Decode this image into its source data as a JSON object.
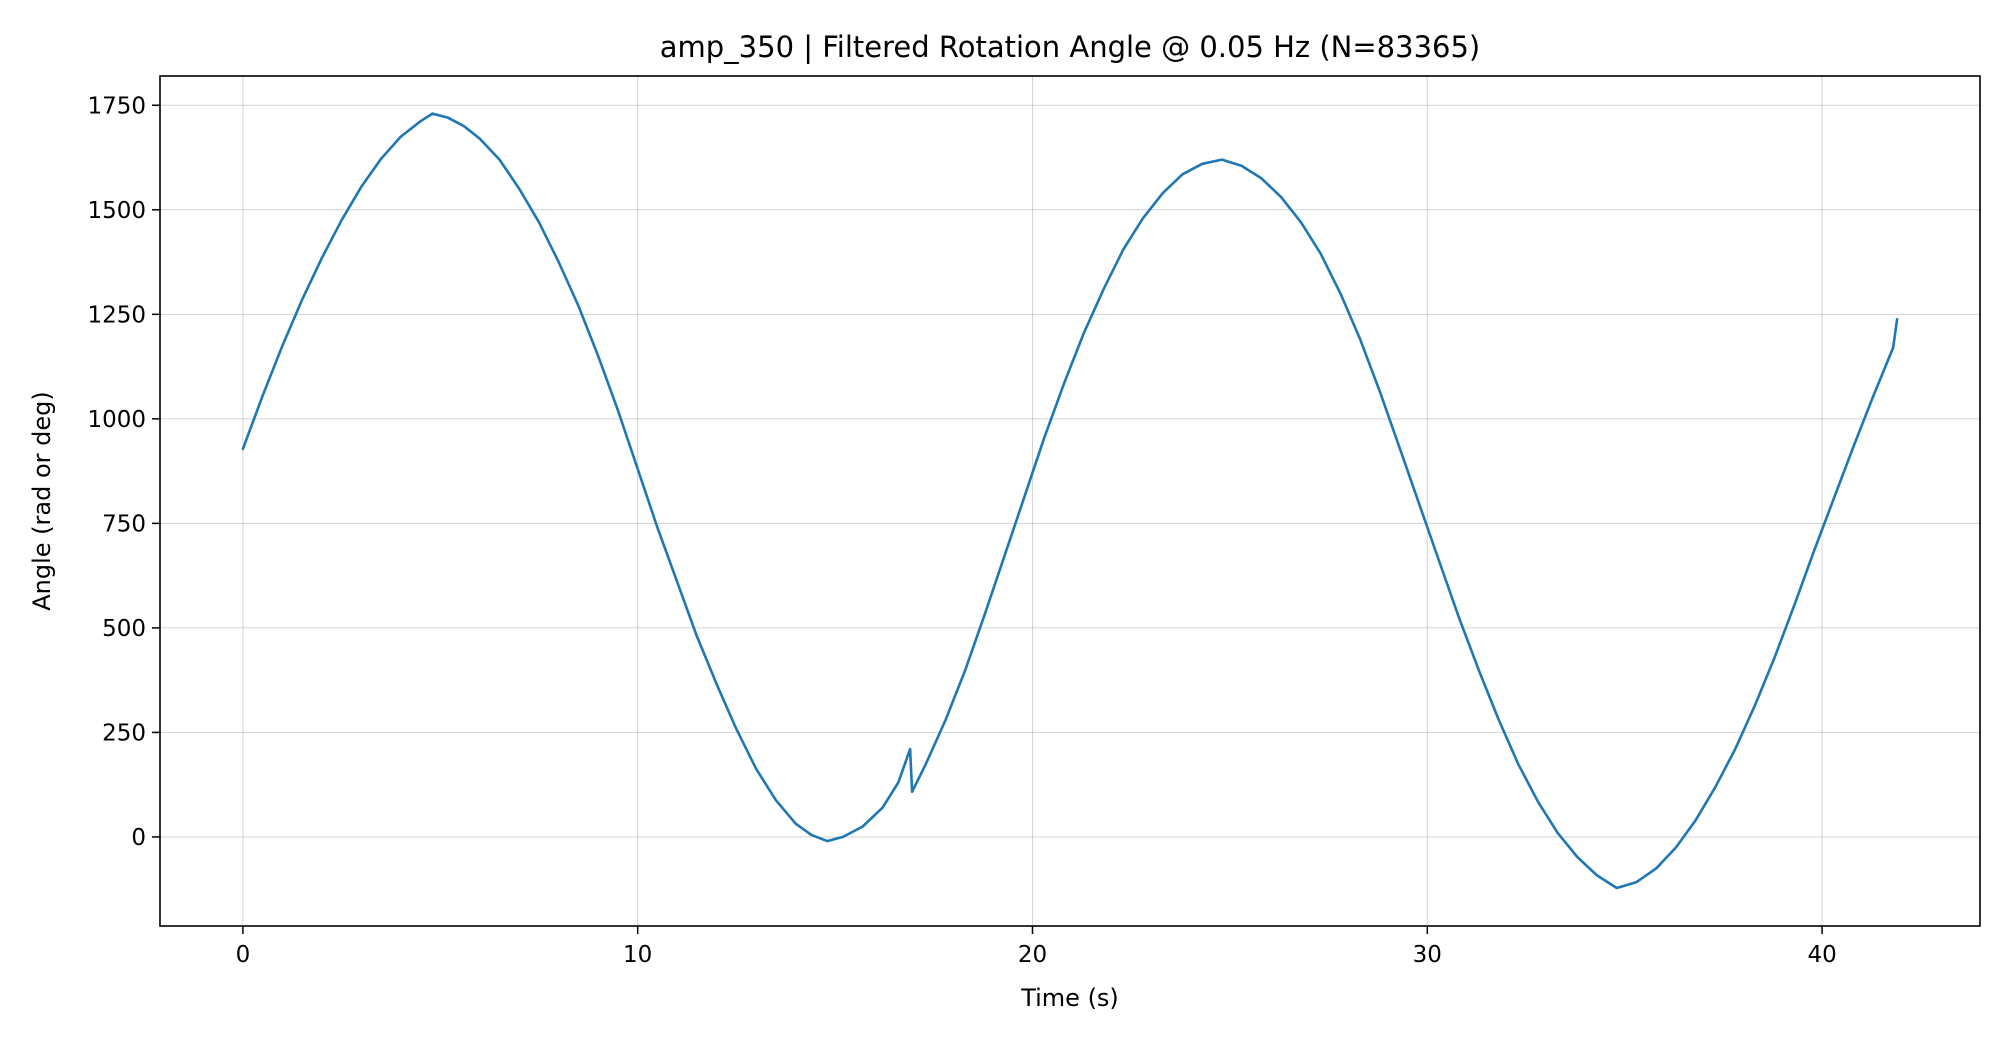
{
  "chart_data": {
    "type": "line",
    "title": "amp_350 | Filtered Rotation Angle @ 0.05 Hz  (N=83365)",
    "xlabel": "Time (s)",
    "ylabel": "Angle (rad or deg)",
    "xlim": [
      -2.1,
      44.0
    ],
    "ylim": [
      -213,
      1820
    ],
    "xticks": [
      0,
      10,
      20,
      30,
      40
    ],
    "yticks": [
      0,
      250,
      500,
      750,
      1000,
      1250,
      1500,
      1750
    ],
    "grid": true,
    "colors": {
      "series": "#1f77b4"
    },
    "series": [
      {
        "values": [
          [
            0,
            928
          ],
          [
            0.5,
            1055
          ],
          [
            1,
            1175
          ],
          [
            1.5,
            1285
          ],
          [
            2,
            1385
          ],
          [
            2.5,
            1475
          ],
          [
            3,
            1555
          ],
          [
            3.5,
            1622
          ],
          [
            4,
            1675
          ],
          [
            4.5,
            1712
          ],
          [
            4.8,
            1730
          ],
          [
            5.2,
            1720
          ],
          [
            5.6,
            1700
          ],
          [
            6,
            1670
          ],
          [
            6.5,
            1620
          ],
          [
            7,
            1550
          ],
          [
            7.5,
            1470
          ],
          [
            8,
            1375
          ],
          [
            8.5,
            1270
          ],
          [
            9,
            1150
          ],
          [
            9.5,
            1020
          ],
          [
            10,
            880
          ],
          [
            10.5,
            740
          ],
          [
            11,
            610
          ],
          [
            11.5,
            480
          ],
          [
            12,
            365
          ],
          [
            12.5,
            258
          ],
          [
            13,
            163
          ],
          [
            13.5,
            88
          ],
          [
            14,
            32
          ],
          [
            14.4,
            5
          ],
          [
            14.8,
            -10
          ],
          [
            15.2,
            0
          ],
          [
            15.7,
            25
          ],
          [
            16.2,
            70
          ],
          [
            16.6,
            130
          ],
          [
            16.9,
            210
          ],
          [
            16.95,
            108
          ],
          [
            17.3,
            175
          ],
          [
            17.8,
            280
          ],
          [
            18.3,
            400
          ],
          [
            18.8,
            535
          ],
          [
            19.3,
            675
          ],
          [
            19.8,
            815
          ],
          [
            20.3,
            955
          ],
          [
            20.8,
            1085
          ],
          [
            21.3,
            1205
          ],
          [
            21.8,
            1310
          ],
          [
            22.3,
            1405
          ],
          [
            22.8,
            1480
          ],
          [
            23.3,
            1540
          ],
          [
            23.8,
            1585
          ],
          [
            24.3,
            1610
          ],
          [
            24.8,
            1620
          ],
          [
            25.3,
            1605
          ],
          [
            25.8,
            1575
          ],
          [
            26.3,
            1530
          ],
          [
            26.8,
            1470
          ],
          [
            27.3,
            1395
          ],
          [
            27.8,
            1300
          ],
          [
            28.3,
            1190
          ],
          [
            28.8,
            1065
          ],
          [
            29.3,
            930
          ],
          [
            29.8,
            795
          ],
          [
            30.3,
            660
          ],
          [
            30.8,
            525
          ],
          [
            31.3,
            400
          ],
          [
            31.8,
            282
          ],
          [
            32.3,
            175
          ],
          [
            32.8,
            85
          ],
          [
            33.3,
            10
          ],
          [
            33.8,
            -48
          ],
          [
            34.3,
            -92
          ],
          [
            34.8,
            -122
          ],
          [
            35.3,
            -108
          ],
          [
            35.8,
            -75
          ],
          [
            36.3,
            -25
          ],
          [
            36.8,
            40
          ],
          [
            37.3,
            120
          ],
          [
            37.8,
            210
          ],
          [
            38.3,
            315
          ],
          [
            38.8,
            430
          ],
          [
            39.3,
            555
          ],
          [
            39.8,
            685
          ],
          [
            40.3,
            810
          ],
          [
            40.8,
            935
          ],
          [
            41.3,
            1055
          ],
          [
            41.8,
            1170
          ],
          [
            41.9,
            1238
          ]
        ]
      }
    ]
  }
}
